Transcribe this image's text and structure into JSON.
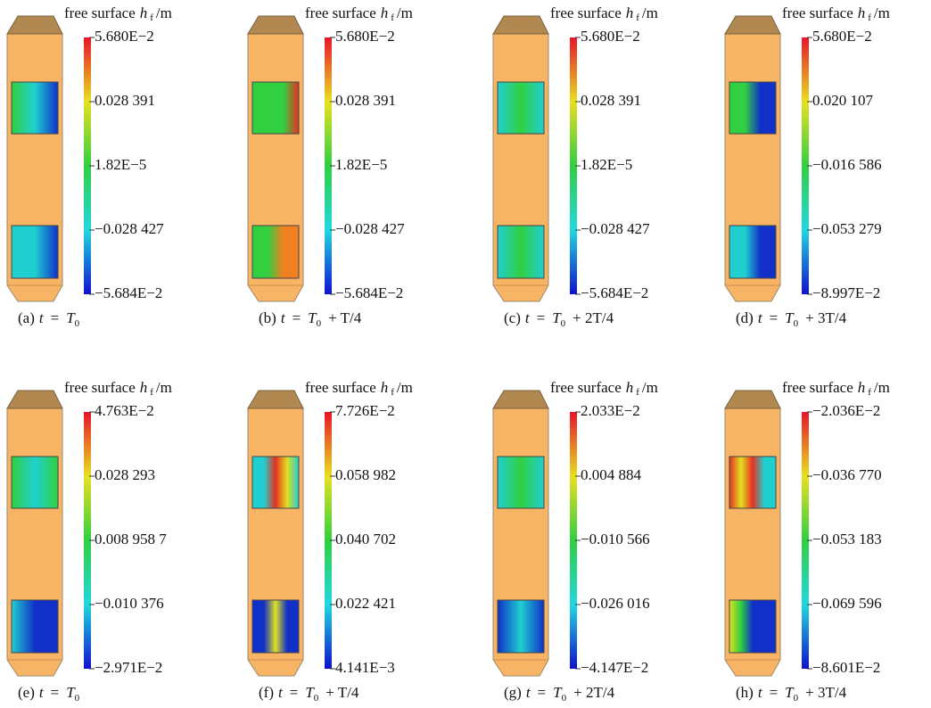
{
  "panels": [
    {
      "title": {
        "text": "free surface",
        "var": "h",
        "sub": "f",
        "unit": "/m"
      },
      "ticks": [
        "5.680E−2",
        "0.028 391",
        "1.82E−5",
        "−0.028 427",
        "−5.684E−2"
      ],
      "caption": {
        "tag": "(a)",
        "lhs": "t",
        "eq": "=",
        "base": "T",
        "sub": "0"
      }
    },
    {
      "title": {
        "text": "free surface",
        "var": "h",
        "sub": "f",
        "unit": "/m"
      },
      "ticks": [
        "5.680E−2",
        "0.028 391",
        "1.82E−5",
        "−0.028 427",
        "−5.684E−2"
      ],
      "caption": {
        "tag": "(b)",
        "lhs": "t",
        "eq": "=",
        "base": "T",
        "sub": "0",
        "rest": "+ T/4"
      }
    },
    {
      "title": {
        "text": "free surface",
        "var": "h",
        "sub": "f",
        "unit": "/m"
      },
      "ticks": [
        "5.680E−2",
        "0.028 391",
        "1.82E−5",
        "−0.028 427",
        "−5.684E−2"
      ],
      "caption": {
        "tag": "(c)",
        "lhs": "t",
        "eq": "=",
        "base": "T",
        "sub": "0",
        "rest": "+ 2T/4"
      }
    },
    {
      "title": {
        "text": "free surface",
        "var": "h",
        "sub": "f",
        "unit": "/m"
      },
      "ticks": [
        "5.680E−2",
        "0.020 107",
        "−0.016 586",
        "−0.053 279",
        "−8.997E−2"
      ],
      "caption": {
        "tag": "(d)",
        "lhs": "t",
        "eq": "=",
        "base": "T",
        "sub": "0",
        "rest": "+ 3T/4"
      }
    },
    {
      "title": {
        "text": "free surface",
        "var": "h",
        "sub": "f",
        "unit": "/m"
      },
      "ticks": [
        "4.763E−2",
        "0.028 293",
        "0.008 958 7",
        "−0.010 376",
        "−2.971E−2"
      ],
      "caption": {
        "tag": "(e)",
        "lhs": "t",
        "eq": "=",
        "base": "T",
        "sub": "0"
      }
    },
    {
      "title": {
        "text": "free surface",
        "var": "h",
        "sub": "f",
        "unit": "/m"
      },
      "ticks": [
        "7.726E−2",
        "0.058 982",
        "0.040 702",
        "0.022 421",
        "4.141E−3"
      ],
      "caption": {
        "tag": "(f)",
        "lhs": "t",
        "eq": "=",
        "base": "T",
        "sub": "0",
        "rest": "+ T/4"
      }
    },
    {
      "title": {
        "text": "free surface",
        "var": "h",
        "sub": "f",
        "unit": "/m"
      },
      "ticks": [
        "2.033E−2",
        "0.004 884",
        "−0.010 566",
        "−0.026 016",
        "−4.147E−2"
      ],
      "caption": {
        "tag": "(g)",
        "lhs": "t",
        "eq": "=",
        "base": "T",
        "sub": "0",
        "rest": "+ 2T/4"
      }
    },
    {
      "title": {
        "text": "free surface",
        "var": "h",
        "sub": "f",
        "unit": "/m"
      },
      "ticks": [
        "−2.036E−2",
        "−0.036 770",
        "−0.053 183",
        "−0.069 596",
        "−8.601E−2"
      ],
      "caption": {
        "tag": "(h)",
        "lhs": "t",
        "eq": "=",
        "base": "T",
        "sub": "0",
        "rest": "+ 3T/4"
      }
    }
  ]
}
